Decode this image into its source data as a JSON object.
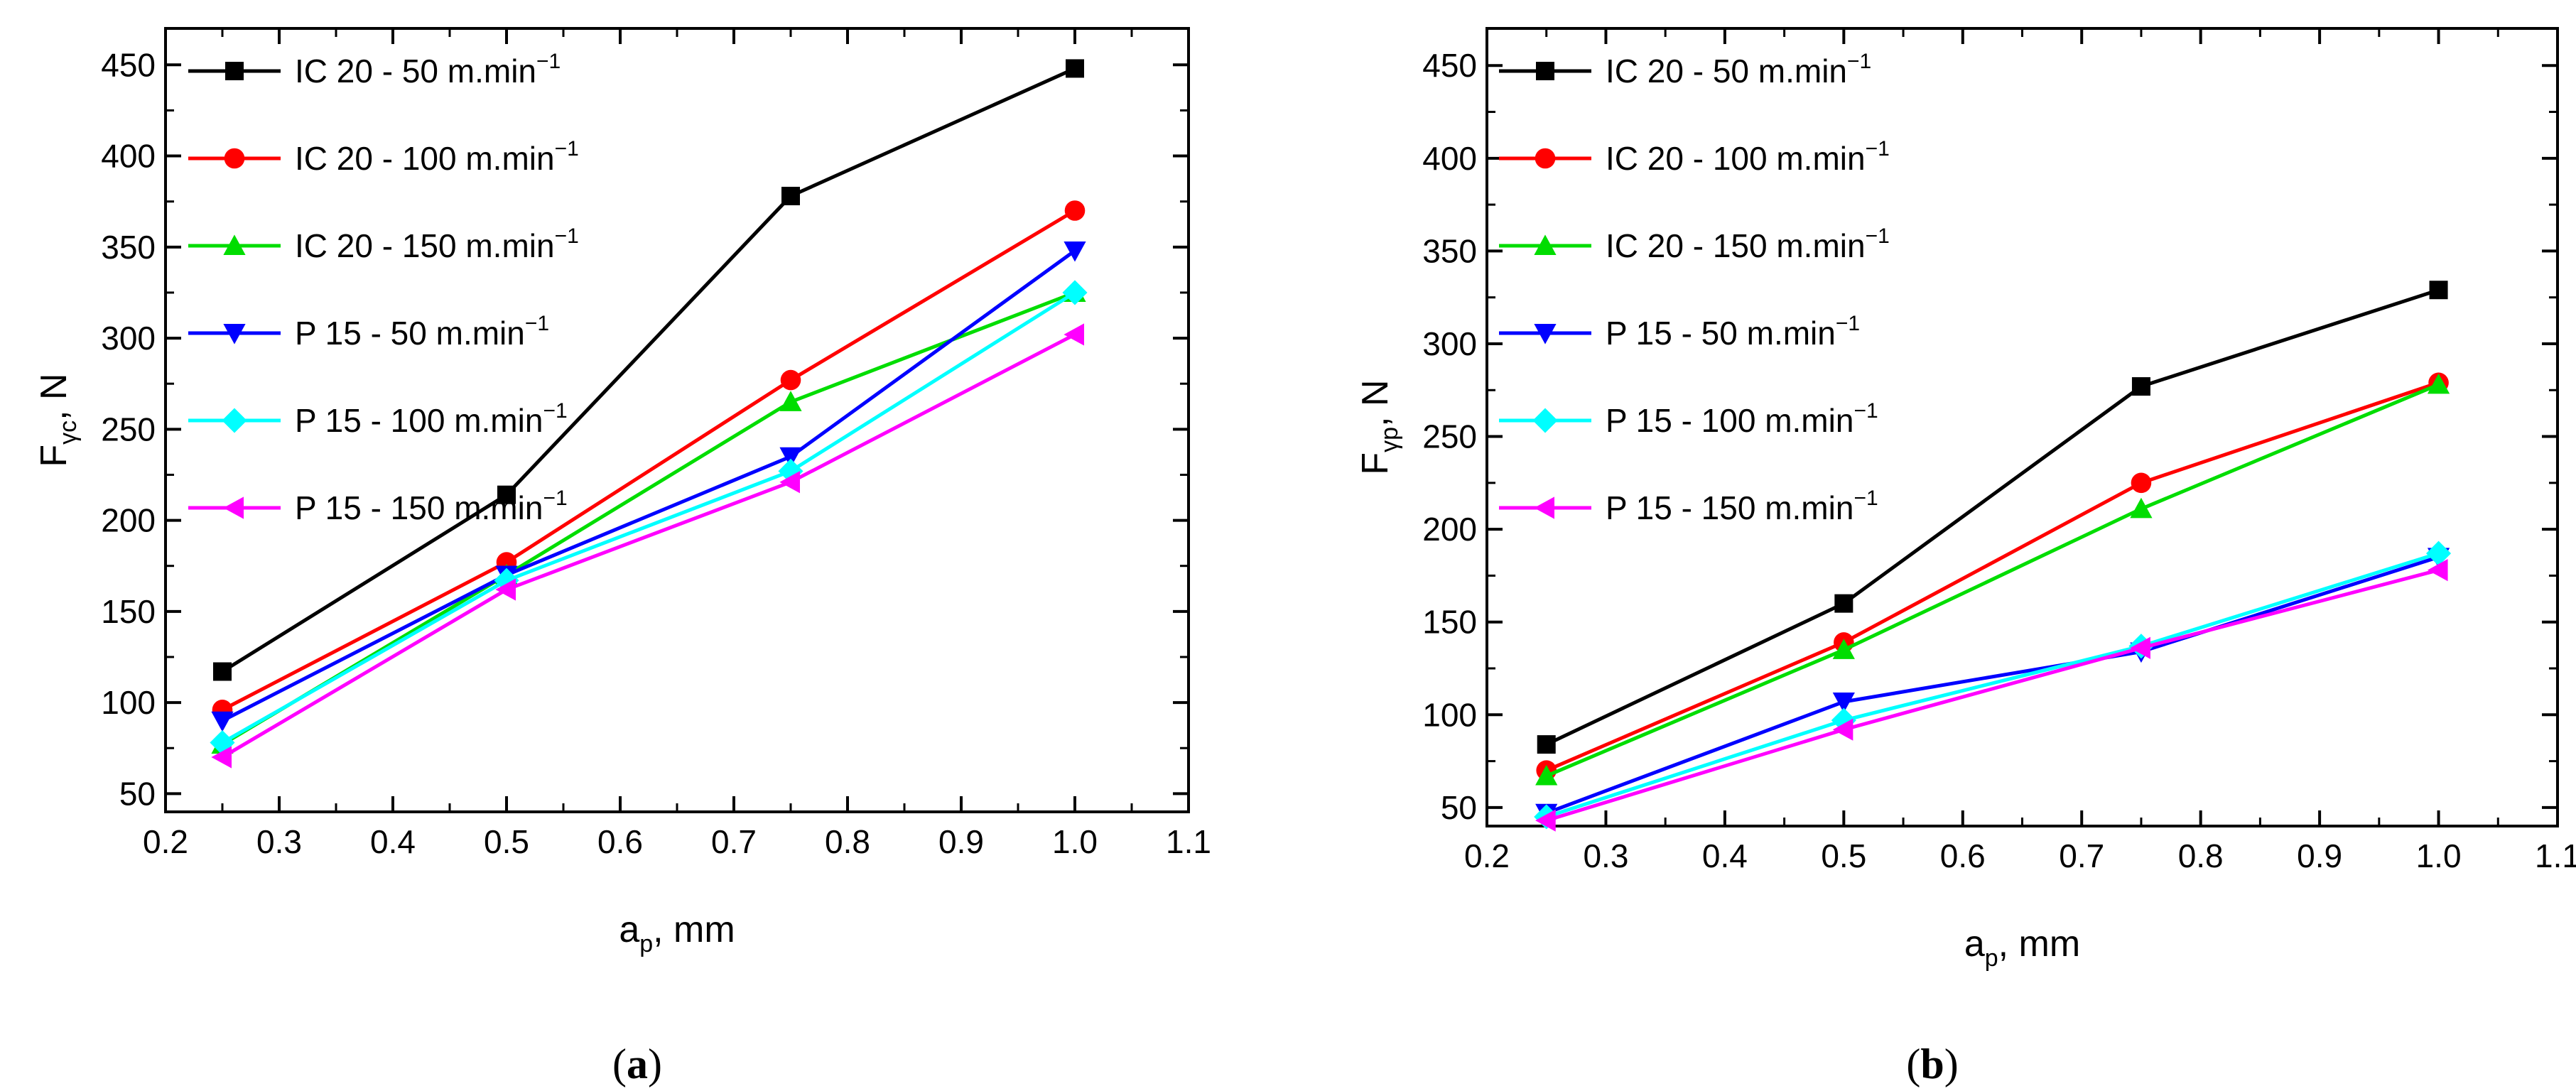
{
  "chart_data": [
    {
      "type": "line",
      "panel_label": "(",
      "panel_letter": "a",
      "panel_close": ")",
      "xlabel": {
        "main": "a",
        "sub": "p",
        "rest": ", mm"
      },
      "ylabel": {
        "main": "F",
        "sub": "γc",
        "rest": ", N"
      },
      "xlim": [
        0.2,
        1.1
      ],
      "ylim": [
        40,
        470
      ],
      "xticks": [
        0.2,
        0.3,
        0.4,
        0.5,
        0.6,
        0.7,
        0.8,
        0.9,
        1.0,
        1.1
      ],
      "xtick_labels": [
        "0.2",
        "0.3",
        "0.4",
        "0.5",
        "0.6",
        "0.7",
        "0.8",
        "0.9",
        "1.0",
        "1.1"
      ],
      "yticks": [
        50,
        100,
        150,
        200,
        250,
        300,
        350,
        400,
        450
      ],
      "ytick_labels": [
        "50",
        "100",
        "150",
        "200",
        "250",
        "300",
        "350",
        "400",
        "450"
      ],
      "x": [
        0.25,
        0.5,
        0.75,
        1.0
      ],
      "series": [
        {
          "name": "IC 20 - 50 m.min",
          "sup": "−1",
          "color": "#000000",
          "marker": "square",
          "values": [
            117,
            214,
            378,
            448
          ]
        },
        {
          "name": "IC 20 - 100 m.min",
          "sup": "−1",
          "color": "#ff0000",
          "marker": "circle",
          "values": [
            96,
            177,
            277,
            370
          ]
        },
        {
          "name": "IC 20 - 150 m.min",
          "sup": "−1",
          "color": "#00dd00",
          "marker": "triangle-up",
          "values": [
            77,
            170,
            265,
            325
          ]
        },
        {
          "name": "P  15 - 50 m.min",
          "sup": "−1",
          "color": "#0000ff",
          "marker": "triangle-down",
          "values": [
            90,
            170,
            235,
            348
          ]
        },
        {
          "name": "P  15 - 100 m.min",
          "sup": "−1",
          "color": "#00ffff",
          "marker": "diamond",
          "values": [
            78,
            167,
            227,
            325
          ]
        },
        {
          "name": "P  15 - 150 m.min",
          "sup": "−1",
          "color": "#ff00ff",
          "marker": "triangle-left",
          "values": [
            70,
            162,
            221,
            302
          ]
        }
      ]
    },
    {
      "type": "line",
      "panel_label": "(",
      "panel_letter": "b",
      "panel_close": ")",
      "xlabel": {
        "main": "a",
        "sub": "p",
        "rest": ", mm"
      },
      "ylabel": {
        "main": "F",
        "sub": "γp",
        "rest": ", N"
      },
      "xlim": [
        0.2,
        1.1
      ],
      "ylim": [
        40,
        470
      ],
      "xticks": [
        0.2,
        0.3,
        0.4,
        0.5,
        0.6,
        0.7,
        0.8,
        0.9,
        1.0,
        1.1
      ],
      "xtick_labels": [
        "0.2",
        "0.3",
        "0.4",
        "0.5",
        "0.6",
        "0.7",
        "0.8",
        "0.9",
        "1.0",
        "1.1"
      ],
      "yticks": [
        50,
        100,
        150,
        200,
        250,
        300,
        350,
        400,
        450
      ],
      "ytick_labels": [
        "50",
        "100",
        "150",
        "200",
        "250",
        "300",
        "350",
        "400",
        "450"
      ],
      "x": [
        0.25,
        0.5,
        0.75,
        1.0
      ],
      "series": [
        {
          "name": "IC 20 - 50 m.min",
          "sup": "−1",
          "color": "#000000",
          "marker": "square",
          "values": [
            84,
            160,
            277,
            329
          ]
        },
        {
          "name": "IC 20 - 100 m.min",
          "sup": "−1",
          "color": "#ff0000",
          "marker": "circle",
          "values": [
            70,
            139,
            225,
            279
          ]
        },
        {
          "name": "IC 20 - 150 m.min",
          "sup": "−1",
          "color": "#00dd00",
          "marker": "triangle-up",
          "values": [
            67,
            135,
            211,
            278
          ]
        },
        {
          "name": "P 15 - 50 m.min",
          "sup": "−1",
          "color": "#0000ff",
          "marker": "triangle-down",
          "values": [
            47,
            107,
            134,
            185
          ]
        },
        {
          "name": "P 15 - 100 m.min",
          "sup": "−1",
          "color": "#00ffff",
          "marker": "diamond",
          "values": [
            45,
            97,
            137,
            187
          ]
        },
        {
          "name": "P 15 - 150 m.min",
          "sup": "−1",
          "color": "#ff00ff",
          "marker": "triangle-left",
          "values": [
            43,
            92,
            136,
            178
          ]
        }
      ]
    }
  ]
}
